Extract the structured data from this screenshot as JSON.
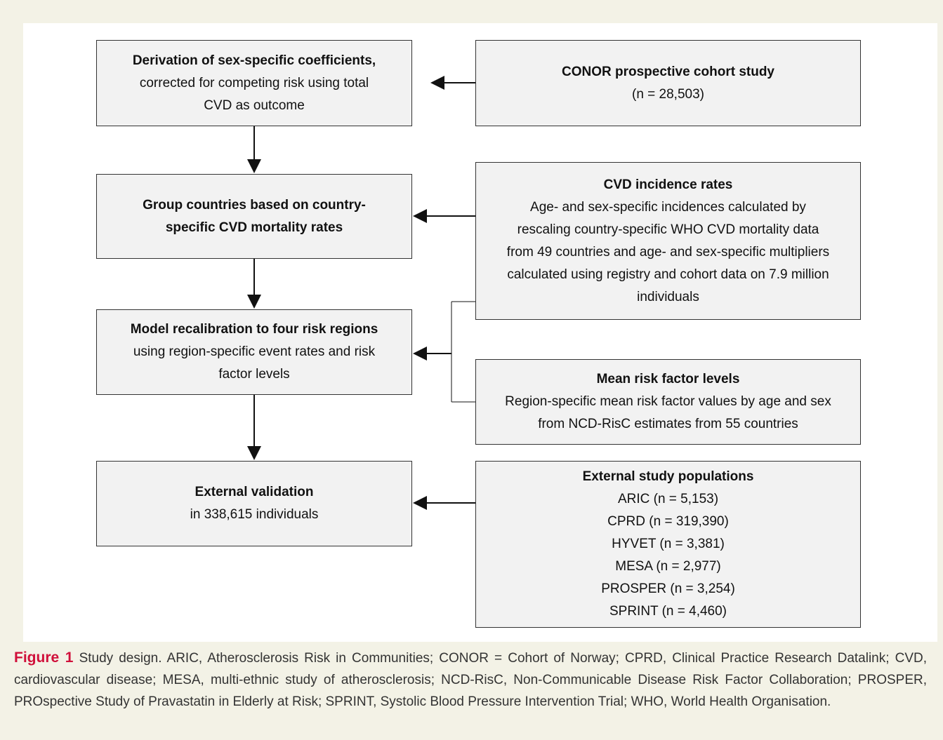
{
  "boxes": [
    {
      "bold": [
        "Derivation of sex-specific coefficients,"
      ],
      "lines": [
        "corrected for competing risk using total",
        "CVD as outcome"
      ]
    },
    {
      "bold": [
        "CONOR prospective cohort study"
      ],
      "lines": [
        "(n = 28,503)"
      ]
    },
    {
      "bold": [
        "Group countries based on country-",
        "specific CVD mortality rates"
      ],
      "lines": []
    },
    {
      "bold": [
        "CVD incidence rates"
      ],
      "lines": [
        "Age- and sex-specific incidences calculated by",
        "rescaling country-specific WHO CVD mortality data",
        "from 49 countries and age- and sex-specific multipliers",
        "calculated using registry and cohort data on 7.9 million",
        "individuals"
      ]
    },
    {
      "bold": [
        "Model recalibration to four risk regions"
      ],
      "lines": [
        "using region-specific event rates and risk",
        "factor levels"
      ]
    },
    {
      "bold": [
        "Mean risk factor levels"
      ],
      "lines": [
        "Region-specific mean risk factor values by age and sex",
        "from NCD-RisC estimates from 55 countries"
      ]
    },
    {
      "bold": [
        "External validation"
      ],
      "lines": [
        "in 338,615 individuals"
      ]
    },
    {
      "bold": [
        "External study populations"
      ],
      "lines": [
        "ARIC (n = 5,153)",
        "CPRD (n = 319,390)",
        "HYVET (n = 3,381)",
        "MESA (n = 2,977)",
        "PROSPER (n = 3,254)",
        "SPRINT (n = 4,460)"
      ]
    }
  ],
  "caption": {
    "label": "Figure 1",
    "text": "Study design. ARIC, Atherosclerosis Risk in Communities; CONOR = Cohort of Norway; CPRD, Clinical Practice Research Datalink; CVD, cardiovascular disease; MESA, multi-ethnic study of atherosclerosis; NCD-RisC, Non-Communicable Disease Risk Factor Collaboration; PROSPER, PROspective Study of Pravastatin in Elderly at Risk; SPRINT, Systolic Blood Pressure Intervention Trial; WHO, World Health Organisation."
  }
}
